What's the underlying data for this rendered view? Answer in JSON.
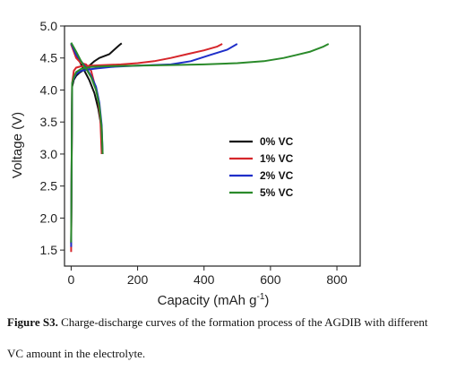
{
  "chart_data": {
    "type": "line",
    "xlabel": "Capacity (mAh g",
    "xlabel_sup": "-1",
    "xlabel_close": ")",
    "ylabel": "Voltage (V)",
    "xlim": [
      -20,
      870
    ],
    "ylim": [
      1.25,
      5.0
    ],
    "xticks": [
      "0",
      "200",
      "400",
      "600",
      "800"
    ],
    "yticks": [
      "1.5",
      "2.0",
      "2.5",
      "3.0",
      "3.5",
      "4.0",
      "4.5",
      "5.0"
    ],
    "legend_position": "center-right",
    "series": [
      {
        "name": "0% VC",
        "color": "#111111",
        "charge": [
          [
            0,
            1.6
          ],
          [
            3,
            4.05
          ],
          [
            8,
            4.16
          ],
          [
            15,
            4.22
          ],
          [
            25,
            4.27
          ],
          [
            40,
            4.32
          ],
          [
            55,
            4.38
          ],
          [
            70,
            4.45
          ],
          [
            85,
            4.5
          ],
          [
            100,
            4.53
          ],
          [
            115,
            4.56
          ],
          [
            130,
            4.63
          ],
          [
            145,
            4.7
          ],
          [
            152,
            4.73
          ]
        ],
        "discharge": [
          [
            0,
            4.72
          ],
          [
            10,
            4.6
          ],
          [
            25,
            4.45
          ],
          [
            40,
            4.3
          ],
          [
            55,
            4.15
          ],
          [
            70,
            3.95
          ],
          [
            82,
            3.7
          ],
          [
            90,
            3.45
          ],
          [
            93,
            3.0
          ]
        ]
      },
      {
        "name": "1% VC",
        "color": "#d6262b",
        "charge": [
          [
            0,
            1.47
          ],
          [
            3,
            4.1
          ],
          [
            8,
            4.3
          ],
          [
            15,
            4.35
          ],
          [
            30,
            4.37
          ],
          [
            60,
            4.38
          ],
          [
            100,
            4.39
          ],
          [
            150,
            4.4
          ],
          [
            200,
            4.42
          ],
          [
            250,
            4.45
          ],
          [
            300,
            4.5
          ],
          [
            350,
            4.56
          ],
          [
            400,
            4.62
          ],
          [
            440,
            4.68
          ],
          [
            455,
            4.72
          ]
        ],
        "discharge": [
          [
            0,
            4.71
          ],
          [
            15,
            4.5
          ],
          [
            30,
            4.42
          ],
          [
            45,
            4.4
          ],
          [
            60,
            4.3
          ],
          [
            70,
            4.1
          ],
          [
            80,
            3.9
          ],
          [
            88,
            3.55
          ],
          [
            92,
            3.0
          ]
        ]
      },
      {
        "name": "2% VC",
        "color": "#1f2fc9",
        "charge": [
          [
            0,
            1.55
          ],
          [
            3,
            4.1
          ],
          [
            8,
            4.18
          ],
          [
            15,
            4.25
          ],
          [
            30,
            4.3
          ],
          [
            50,
            4.32
          ],
          [
            80,
            4.34
          ],
          [
            120,
            4.36
          ],
          [
            200,
            4.38
          ],
          [
            300,
            4.4
          ],
          [
            360,
            4.45
          ],
          [
            420,
            4.55
          ],
          [
            470,
            4.63
          ],
          [
            500,
            4.72
          ]
        ],
        "discharge": [
          [
            0,
            4.73
          ],
          [
            15,
            4.55
          ],
          [
            30,
            4.45
          ],
          [
            45,
            4.35
          ],
          [
            60,
            4.22
          ],
          [
            75,
            4.05
          ],
          [
            85,
            3.8
          ],
          [
            92,
            3.45
          ],
          [
            95,
            3.0
          ]
        ]
      },
      {
        "name": "5% VC",
        "color": "#2a8a2a",
        "charge": [
          [
            0,
            1.62
          ],
          [
            3,
            4.1
          ],
          [
            8,
            4.2
          ],
          [
            15,
            4.28
          ],
          [
            30,
            4.33
          ],
          [
            60,
            4.36
          ],
          [
            100,
            4.37
          ],
          [
            200,
            4.38
          ],
          [
            300,
            4.39
          ],
          [
            400,
            4.4
          ],
          [
            500,
            4.42
          ],
          [
            580,
            4.45
          ],
          [
            640,
            4.5
          ],
          [
            680,
            4.55
          ],
          [
            720,
            4.6
          ],
          [
            760,
            4.68
          ],
          [
            775,
            4.72
          ]
        ],
        "discharge": [
          [
            0,
            4.74
          ],
          [
            15,
            4.6
          ],
          [
            30,
            4.45
          ],
          [
            45,
            4.33
          ],
          [
            60,
            4.2
          ],
          [
            75,
            4.0
          ],
          [
            85,
            3.75
          ],
          [
            92,
            3.4
          ],
          [
            95,
            3.0
          ]
        ]
      }
    ]
  },
  "caption": {
    "label": "Figure S3.",
    "text_line1": "Charge-discharge curves of the formation process of the AGDIB with different",
    "text_line2": "VC amount in the electrolyte."
  }
}
